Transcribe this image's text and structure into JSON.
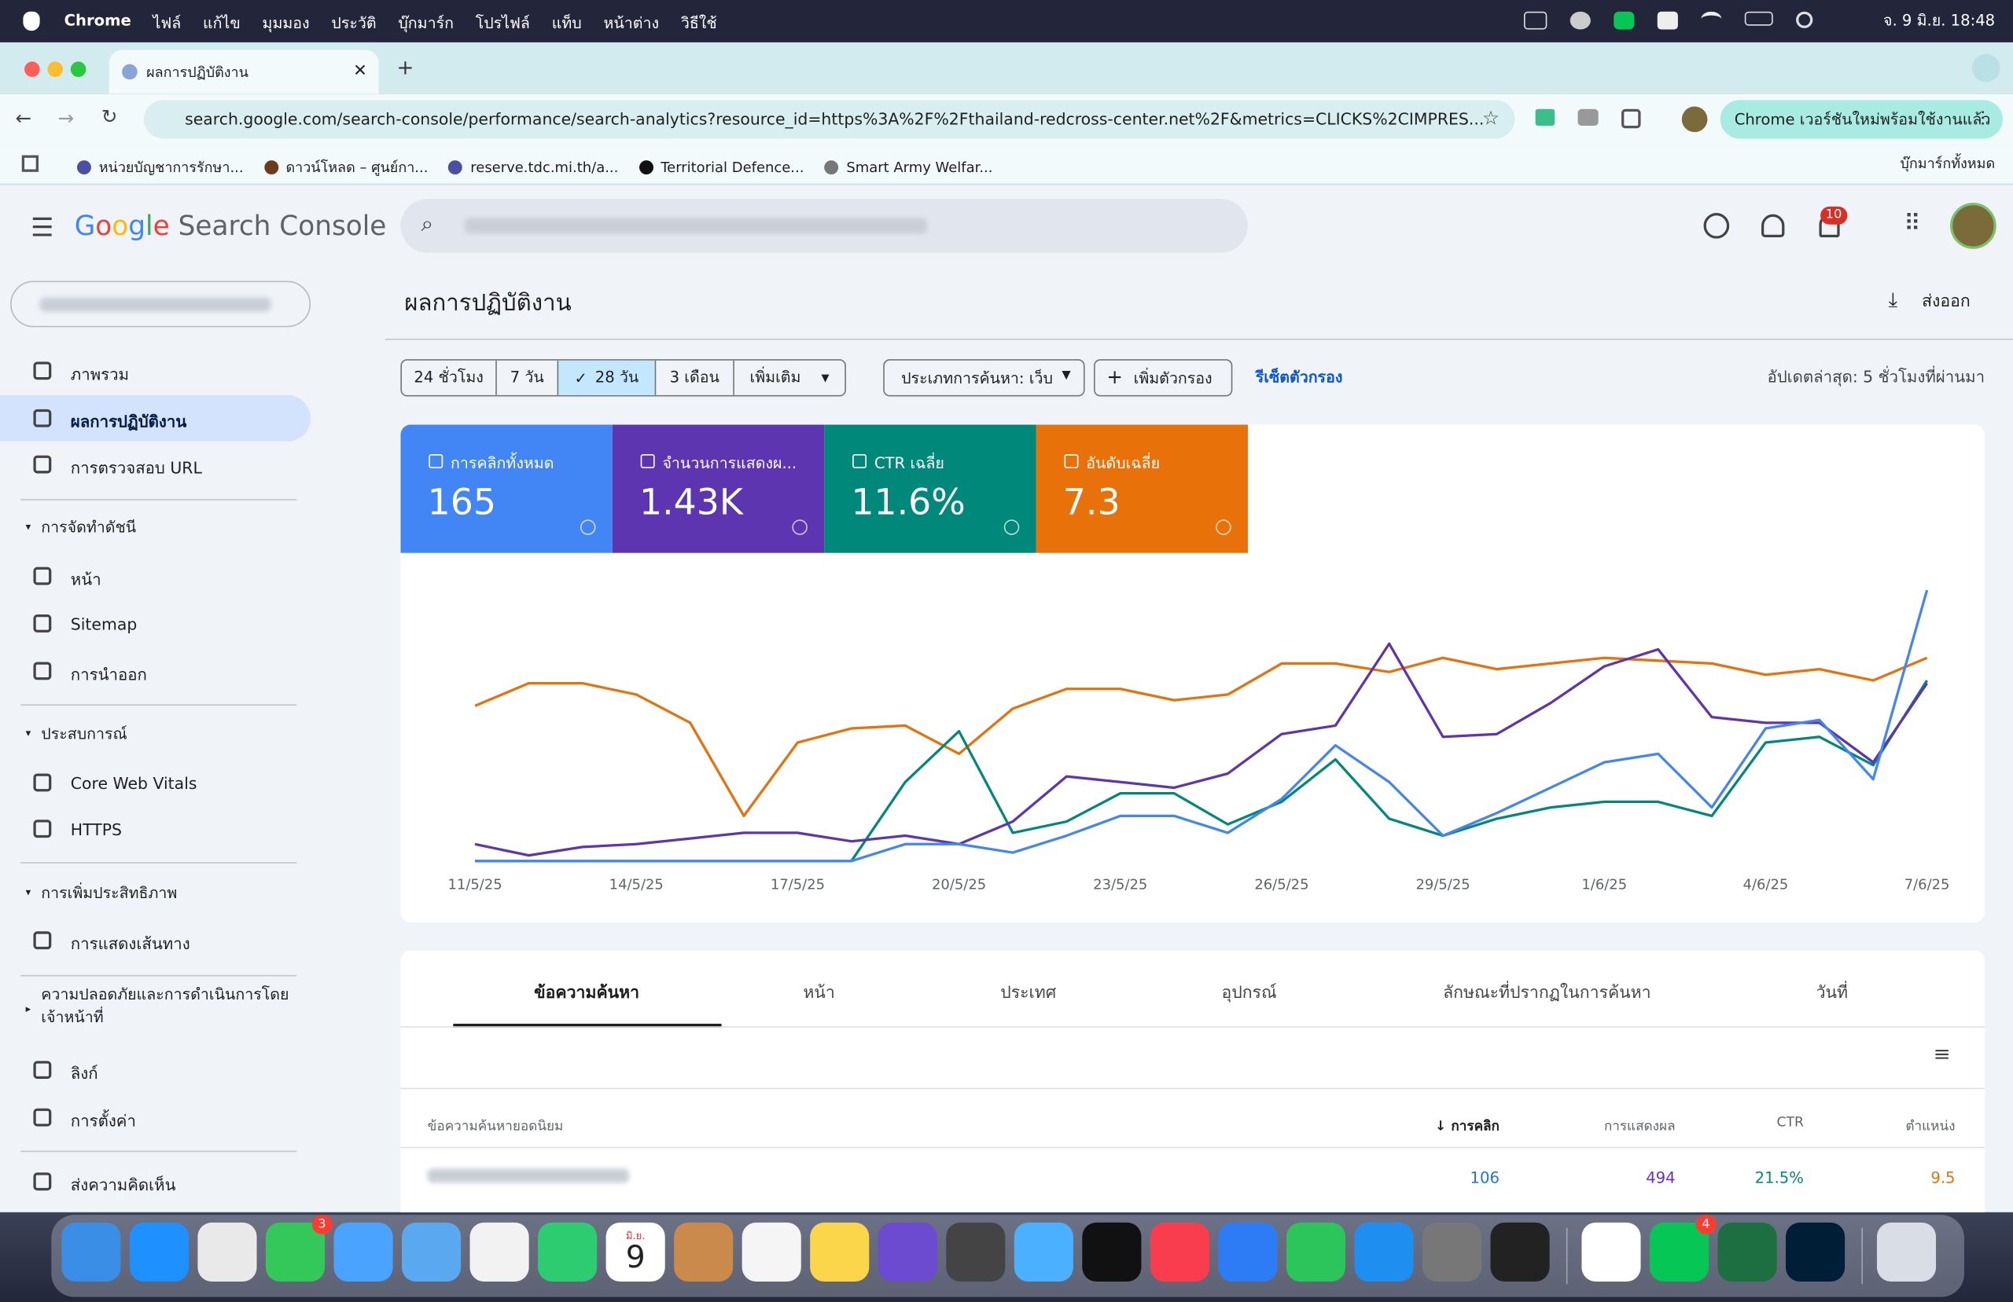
{
  "menubar": {
    "items": [
      "Chrome",
      "ไฟล์",
      "แก้ไข",
      "มุมมอง",
      "ประวัติ",
      "บุ๊กมาร์ก",
      "โปรไฟล์",
      "แท็บ",
      "หน้าต่าง",
      "วิธีใช้"
    ],
    "clock": "จ. 9 มิ.ย.  18:48"
  },
  "browser": {
    "tab_title": "ผลการปฏิบัติงาน",
    "url": "search.google.com/search-console/performance/search-analytics?resource_id=https%3A%2F%2Fthailand-redcross-center.net%2F&metrics=CLICKS%2CIMPRES...",
    "update_button": "Chrome เวอร์ชันใหม่พร้อมใช้งานแล้ว",
    "bookmarks": [
      "หน่วยบัญชาการรักษา...",
      "ดาวน์โหลด – ศูนย์กา...",
      "reserve.tdc.mi.th/a...",
      "Territorial Defence...",
      "Smart Army Welfar..."
    ],
    "all_bookmarks": "บุ๊กมาร์กทั้งหมด"
  },
  "header": {
    "logo_google": "Google",
    "logo_product": "Search Console",
    "notification_count": "10"
  },
  "sidebar": [
    {
      "kind": "item",
      "label": "ภาพรวม"
    },
    {
      "kind": "item",
      "label": "ผลการปฏิบัติงาน",
      "selected": true
    },
    {
      "kind": "item",
      "label": "การตรวจสอบ URL"
    },
    {
      "kind": "section",
      "label": "การจัดทำดัชนี"
    },
    {
      "kind": "item",
      "label": "หน้า"
    },
    {
      "kind": "item",
      "label": "Sitemap"
    },
    {
      "kind": "item",
      "label": "การนำออก"
    },
    {
      "kind": "section",
      "label": "ประสบการณ์"
    },
    {
      "kind": "item",
      "label": "Core Web Vitals"
    },
    {
      "kind": "item",
      "label": "HTTPS"
    },
    {
      "kind": "section",
      "label": "การเพิ่มประสิทธิภาพ"
    },
    {
      "kind": "item",
      "label": "การแสดงเส้นทาง"
    },
    {
      "kind": "section",
      "label": "ความปลอดภัยและการดำเนินการโดยเจ้าหน้าที่"
    },
    {
      "kind": "item",
      "label": "ลิงก์"
    },
    {
      "kind": "item",
      "label": "การตั้งค่า"
    },
    {
      "kind": "item",
      "label": "ส่งความคิดเห็น"
    }
  ],
  "page": {
    "title": "ผลการปฏิบัติงาน",
    "export": "ส่งออก"
  },
  "filters": {
    "ranges": [
      "24 ชั่วโมง",
      "7 วัน",
      "28 วัน",
      "3 เดือน",
      "เพิ่มเติม"
    ],
    "selected_range": 2,
    "search_type": "ประเภทการค้นหา: เว็บ",
    "add_filter": "เพิ่มตัวกรอง",
    "reset": "รีเซ็ตตัวกรอง",
    "updated": "อัปเดตล่าสุด: 5 ชั่วโมงที่ผ่านมา"
  },
  "metric_totals": [
    "165",
    "1.43K",
    "11.6%",
    "7.3"
  ],
  "chart_data": {
    "type": "line",
    "categories": [
      "11/5/25",
      null,
      null,
      "14/5/25",
      null,
      null,
      "17/5/25",
      null,
      null,
      "20/5/25",
      null,
      null,
      "23/5/25",
      null,
      null,
      "26/5/25",
      null,
      null,
      "29/5/25",
      null,
      null,
      "1/6/25",
      null,
      null,
      "4/6/25",
      null,
      null,
      "7/6/25"
    ],
    "ylim": [
      0,
      100
    ],
    "series": [
      {
        "name": "การคลิกทั้งหมด",
        "color": "#4285f4",
        "values": [
          4,
          4,
          4,
          4,
          4,
          4,
          4,
          4,
          10,
          10,
          7,
          13,
          20,
          20,
          14,
          26,
          45,
          32,
          13,
          21,
          30,
          39,
          42,
          23,
          51,
          54,
          33,
          100
        ]
      },
      {
        "name": "จำนวนการแสดงผ...",
        "color": "#5e35b1",
        "values": [
          10,
          6,
          9,
          10,
          12,
          14,
          14,
          11,
          13,
          10,
          18,
          34,
          32,
          30,
          35,
          49,
          52,
          81,
          48,
          49,
          60,
          73,
          79,
          55,
          53,
          53,
          39,
          67
        ]
      },
      {
        "name": "CTR เฉลี่ย",
        "color": "#00897b",
        "values": [
          4,
          4,
          4,
          4,
          4,
          4,
          4,
          4,
          32,
          50,
          14,
          18,
          28,
          28,
          17,
          25,
          40,
          19,
          13,
          19,
          23,
          25,
          25,
          20,
          46,
          48,
          38,
          68
        ]
      },
      {
        "name": "อันดับเฉลี่ย",
        "color": "#e8710a",
        "values": [
          59,
          67,
          67,
          63,
          53,
          20,
          46,
          51,
          52,
          42,
          58,
          65,
          65,
          61,
          63,
          74,
          74,
          71,
          76,
          72,
          74,
          76,
          75,
          74,
          70,
          72,
          68,
          76
        ]
      }
    ]
  },
  "tabs": [
    "ข้อความค้นหา",
    "หน้า",
    "ประเทศ",
    "อุปกรณ์",
    "ลักษณะที่ปรากฏในการค้นหา",
    "วันที่"
  ],
  "table": {
    "headers": [
      "ข้อความค้นหายอดนิยม",
      "การคลิก",
      "การแสดงผล",
      "CTR",
      "ตำแหน่ง"
    ],
    "rows": [
      [
        "106",
        "494",
        "21.5%",
        "9.5"
      ]
    ]
  },
  "dock": {
    "messages_badge": "3",
    "line_badge": "4",
    "calendar_month": "มิ.ย.",
    "calendar_day": "9"
  }
}
